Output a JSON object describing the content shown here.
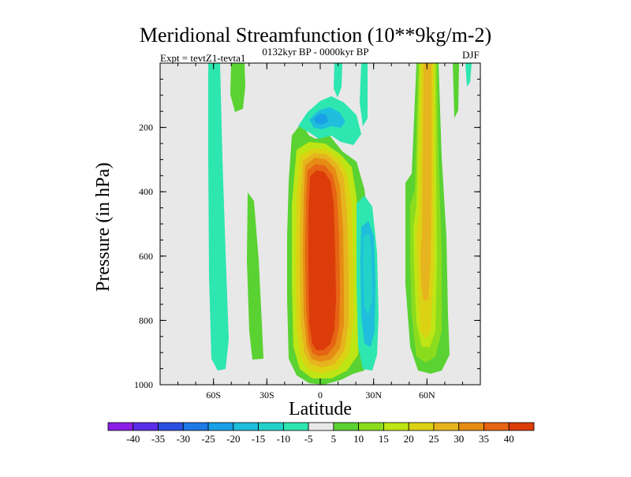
{
  "chart_data": {
    "type": "heatmap",
    "title": "Meridional Streamfunction (10**9kg/m-2)",
    "subtitle": "0132kyr BP - 0000kyr BP",
    "left_label": "Expt = tevtZ1-tevta1",
    "right_label": "DJF",
    "xlabel": "Latitude",
    "ylabel": "Pressure (in hPa)",
    "xlim": [
      -90,
      90
    ],
    "ylim": [
      1000,
      0
    ],
    "x_ticks": [
      {
        "value": -60,
        "label": "60S"
      },
      {
        "value": -30,
        "label": "30S"
      },
      {
        "value": 0,
        "label": "0"
      },
      {
        "value": 30,
        "label": "30N"
      },
      {
        "value": 60,
        "label": "60N"
      }
    ],
    "y_ticks": [
      {
        "value": 200,
        "label": "200"
      },
      {
        "value": 400,
        "label": "400"
      },
      {
        "value": 600,
        "label": "600"
      },
      {
        "value": 800,
        "label": "800"
      },
      {
        "value": 1000,
        "label": "1000"
      }
    ],
    "background_color": "#e8e8e8",
    "colorbar": {
      "levels": [
        -40,
        -35,
        -30,
        -25,
        -20,
        -15,
        -10,
        -5,
        5,
        10,
        15,
        20,
        25,
        30,
        35,
        40
      ],
      "labels": [
        "-40",
        "-35",
        "-30",
        "-25",
        "-20",
        "-15",
        "-10",
        "-5",
        "5",
        "10",
        "15",
        "20",
        "25",
        "30",
        "35",
        "40"
      ],
      "colors": [
        "#8b1ee8",
        "#5a2ee8",
        "#2a4ee0",
        "#1e78e6",
        "#19a0e6",
        "#1ebedc",
        "#22d2c8",
        "#2ee6b0",
        "#e8e8e8",
        "#5ad232",
        "#8cdc1e",
        "#bee614",
        "#dcd214",
        "#e6b41e",
        "#e68c14",
        "#e66414",
        "#dc3c0a"
      ]
    },
    "regions": [
      {
        "name": "sh-high-lat-negative",
        "value": -7,
        "lat": [
          -64,
          -58
        ],
        "p": [
          0,
          950
        ]
      },
      {
        "name": "sh-upper-positive",
        "value": 7,
        "lat": [
          -53,
          -45
        ],
        "p": [
          0,
          140
        ]
      },
      {
        "name": "sh-midlat-positive",
        "value": 7,
        "lat": [
          -42,
          -36
        ],
        "p": [
          400,
          920
        ]
      },
      {
        "name": "hadley-cell-core",
        "value": 38,
        "lat": [
          -7,
          11
        ],
        "p": [
          250,
          980
        ]
      },
      {
        "name": "upper-tropics-negative",
        "value": -12,
        "lat": [
          -6,
          10
        ],
        "p": [
          120,
          210
        ]
      },
      {
        "name": "nh-subtropics-negative",
        "value": -12,
        "lat": [
          24,
          32
        ],
        "p": [
          450,
          950
        ]
      },
      {
        "name": "nh-high-lat-positive",
        "value": 25,
        "lat": [
          54,
          64
        ],
        "p": [
          0,
          980
        ]
      }
    ]
  }
}
